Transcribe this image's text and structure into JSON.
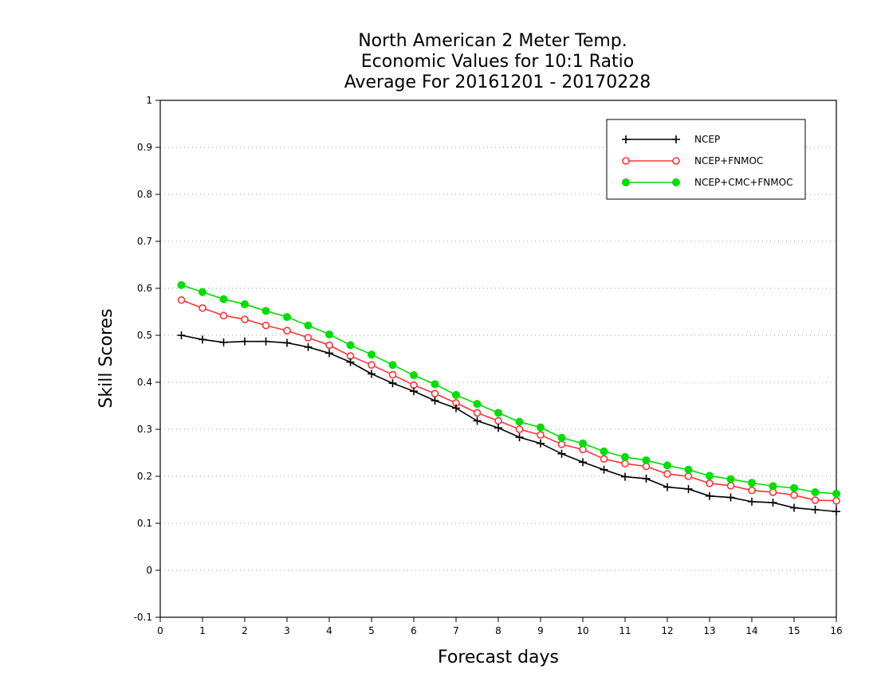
{
  "chart_data": {
    "type": "line",
    "title_lines": [
      "North American 2 Meter Temp.",
      "Economic Values for 10:1 Ratio",
      "Average For 20161201 - 20170228"
    ],
    "xlabel": "Forecast days",
    "ylabel": "Skill Scores",
    "xlim": [
      0,
      16
    ],
    "ylim": [
      -0.1,
      1
    ],
    "x_ticks": [
      "0",
      "1",
      "2",
      "3",
      "4",
      "5",
      "6",
      "7",
      "8",
      "9",
      "10",
      "11",
      "12",
      "13",
      "14",
      "15",
      "16"
    ],
    "y_ticks": [
      "-0.1",
      "0",
      "0.1",
      "0.2",
      "0.3",
      "0.4",
      "0.5",
      "0.6",
      "0.7",
      "0.8",
      "0.9",
      "1"
    ],
    "grid": "horizontal dotted",
    "legend_position": "top-right",
    "x": [
      0.5,
      1,
      1.5,
      2,
      2.5,
      3,
      3.5,
      4,
      4.5,
      5,
      5.5,
      6,
      6.5,
      7,
      7.5,
      8,
      8.5,
      9,
      9.5,
      10,
      10.5,
      11,
      11.5,
      12,
      12.5,
      13,
      13.5,
      14,
      14.5,
      15,
      15.5,
      16
    ],
    "series": [
      {
        "name": "NCEP",
        "color": "#000000",
        "marker": "plus",
        "values": [
          0.5,
          0.491,
          0.485,
          0.487,
          0.487,
          0.484,
          0.475,
          0.462,
          0.443,
          0.418,
          0.398,
          0.381,
          0.361,
          0.345,
          0.318,
          0.303,
          0.283,
          0.27,
          0.248,
          0.23,
          0.214,
          0.199,
          0.195,
          0.177,
          0.173,
          0.158,
          0.155,
          0.146,
          0.144,
          0.133,
          0.129,
          0.125
        ]
      },
      {
        "name": "NCEP+FNMOC",
        "color": "#ff3333",
        "marker": "open-circle",
        "values": [
          0.575,
          0.558,
          0.542,
          0.534,
          0.521,
          0.51,
          0.495,
          0.479,
          0.456,
          0.437,
          0.416,
          0.394,
          0.376,
          0.356,
          0.335,
          0.318,
          0.3,
          0.288,
          0.268,
          0.257,
          0.237,
          0.227,
          0.221,
          0.205,
          0.2,
          0.185,
          0.18,
          0.17,
          0.166,
          0.16,
          0.149,
          0.148
        ]
      },
      {
        "name": "NCEP+CMC+FNMOC",
        "color": "#00dd00",
        "marker": "filled-circle",
        "values": [
          0.607,
          0.592,
          0.577,
          0.566,
          0.552,
          0.539,
          0.521,
          0.502,
          0.479,
          0.459,
          0.437,
          0.415,
          0.396,
          0.373,
          0.354,
          0.335,
          0.316,
          0.304,
          0.282,
          0.27,
          0.253,
          0.241,
          0.234,
          0.223,
          0.214,
          0.201,
          0.194,
          0.186,
          0.179,
          0.175,
          0.166,
          0.163
        ]
      }
    ]
  }
}
